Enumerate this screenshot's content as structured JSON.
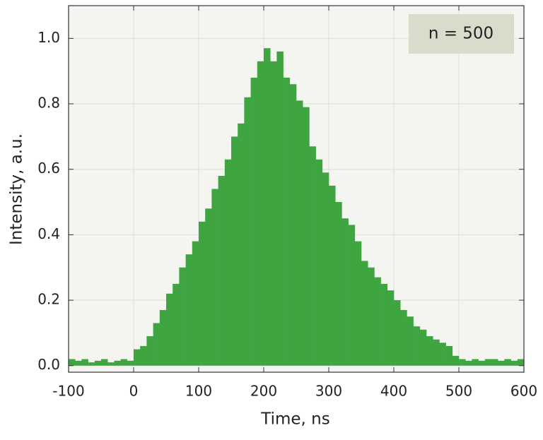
{
  "chart_data": {
    "type": "histogram",
    "xlabel": "Time, ns",
    "ylabel": "Intensity, a.u.",
    "annotation": "n = 500",
    "color": "#3ea540",
    "bins": [
      -100,
      -90,
      -80,
      -70,
      -60,
      -50,
      -40,
      -30,
      -20,
      -10,
      0,
      10,
      20,
      30,
      40,
      50,
      60,
      70,
      80,
      90,
      100,
      110,
      120,
      130,
      140,
      150,
      160,
      170,
      180,
      190,
      200,
      210,
      220,
      230,
      240,
      250,
      260,
      270,
      280,
      290,
      300,
      310,
      320,
      330,
      340,
      350,
      360,
      370,
      380,
      390,
      400,
      410,
      420,
      430,
      440,
      450,
      460,
      470,
      480,
      490,
      500,
      510,
      520,
      530,
      540,
      550,
      560,
      570,
      580,
      590,
      600
    ],
    "values": [
      0.02,
      0.015,
      0.02,
      0.01,
      0.015,
      0.02,
      0.01,
      0.015,
      0.02,
      0.015,
      0.05,
      0.06,
      0.09,
      0.13,
      0.17,
      0.22,
      0.25,
      0.3,
      0.34,
      0.38,
      0.44,
      0.48,
      0.54,
      0.58,
      0.63,
      0.7,
      0.74,
      0.82,
      0.88,
      0.93,
      0.97,
      0.93,
      0.96,
      0.88,
      0.86,
      0.81,
      0.79,
      0.67,
      0.63,
      0.59,
      0.55,
      0.5,
      0.45,
      0.43,
      0.38,
      0.32,
      0.3,
      0.27,
      0.25,
      0.23,
      0.2,
      0.17,
      0.15,
      0.12,
      0.11,
      0.09,
      0.08,
      0.07,
      0.06,
      0.03,
      0.02,
      0.015,
      0.02,
      0.015,
      0.02,
      0.02,
      0.015,
      0.02,
      0.015,
      0.02
    ],
    "xlim": [
      -100,
      600
    ],
    "xticks": [
      -100,
      0,
      100,
      200,
      300,
      400,
      500,
      600
    ],
    "ylim": [
      -0.02,
      1.1
    ],
    "yticks": [
      {
        "value": 0,
        "label": "0.0"
      },
      0.2,
      0.4,
      0.6,
      0.8,
      {
        "value": 1,
        "label": "1.0"
      }
    ],
    "grid": true
  }
}
